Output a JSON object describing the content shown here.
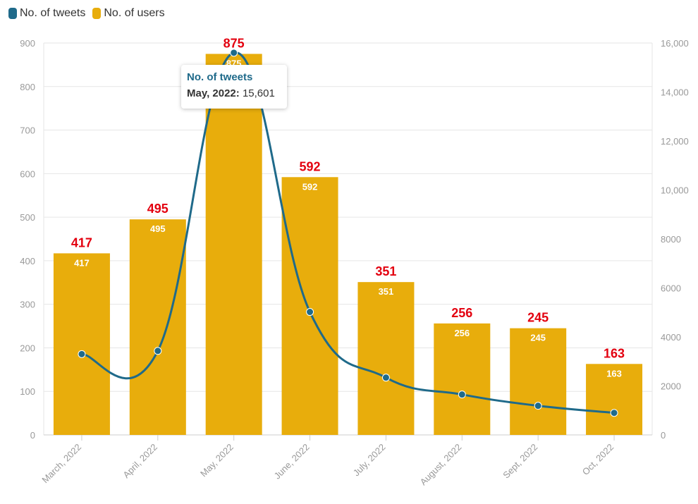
{
  "legend": {
    "items": [
      {
        "label": "No. of tweets",
        "color": "#1f6a8a"
      },
      {
        "label": "No. of users",
        "color": "#e8ad0c"
      }
    ]
  },
  "tooltip": {
    "title": "No. of tweets",
    "category": "May, 2022:",
    "value": "15,601"
  },
  "chart_data": {
    "type": "bar",
    "categories": [
      "March, 2022",
      "April, 2022",
      "May, 2022",
      "June, 2022",
      "July, 2022",
      "August, 2022",
      "Sept, 2022",
      "Oct, 2022"
    ],
    "series": [
      {
        "name": "No. of users",
        "type": "bar",
        "axis": "left",
        "color": "#e8ad0c",
        "values": [
          417,
          495,
          875,
          592,
          351,
          256,
          245,
          163
        ]
      },
      {
        "name": "No. of tweets",
        "type": "line",
        "axis": "right",
        "color": "#1f6a8a",
        "values": [
          3300,
          3430,
          15601,
          5020,
          2340,
          1650,
          1190,
          900
        ]
      }
    ],
    "ylim_left": [
      0,
      900
    ],
    "yticks_left": [
      0,
      100,
      200,
      300,
      400,
      500,
      600,
      700,
      800,
      900
    ],
    "ytick_labels_left": [
      "0",
      "100",
      "200",
      "300",
      "400",
      "500",
      "600",
      "700",
      "800",
      "900"
    ],
    "ylim_right": [
      0,
      16000
    ],
    "yticks_right": [
      0,
      2000,
      4000,
      6000,
      8000,
      10000,
      12000,
      14000,
      16000
    ],
    "ytick_labels_right": [
      "0",
      "2000",
      "4000",
      "6000",
      "8000",
      "10,000",
      "12,000",
      "14,000",
      "16,000"
    ],
    "grid": true,
    "legend_position": "top-left",
    "label_color_outer": "#e3000f",
    "label_color_inner": "#ffffff",
    "grid_color": "#e6e6e6",
    "axis_text_color": "#999999"
  }
}
